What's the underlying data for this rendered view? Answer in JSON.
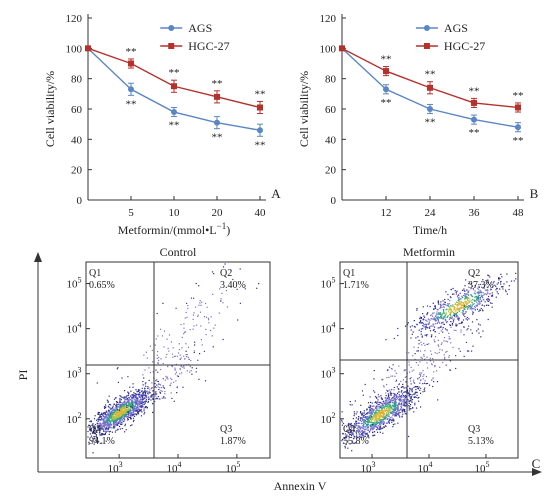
{
  "colors": {
    "ags": "#5b86c4",
    "hgc": "#b5312c",
    "axis": "#333333",
    "quad_line": "#333333"
  },
  "chart_data": [
    {
      "type": "line",
      "panel_label": "A",
      "xlabel": "Metformin/(mmol•L",
      "xlabel_sup": "−1",
      "xlabel_close": ")",
      "ylabel": "Cell viability/%",
      "categories": [
        "0",
        "5",
        "10",
        "20",
        "40"
      ],
      "x_tick_labels": [
        "5",
        "10",
        "20",
        "40"
      ],
      "y_ticks": [
        "0",
        "20",
        "40",
        "60",
        "80",
        "100",
        "120"
      ],
      "ylim": [
        0,
        120
      ],
      "legend_position": "top-right",
      "series": [
        {
          "name": "AGS",
          "color": "#5b86c4",
          "marker": "circle",
          "values": [
            100,
            73,
            58,
            51,
            46
          ],
          "errors": [
            0,
            4,
            3,
            4,
            4
          ],
          "sig": [
            "",
            "**",
            "**",
            "**",
            "**"
          ]
        },
        {
          "name": "HGC-27",
          "color": "#b5312c",
          "marker": "square",
          "values": [
            100,
            90,
            75,
            68,
            61
          ],
          "errors": [
            0,
            3,
            4,
            4,
            4
          ],
          "sig": [
            "",
            "**",
            "**",
            "**",
            "**"
          ]
        }
      ]
    },
    {
      "type": "line",
      "panel_label": "B",
      "xlabel": "Time/h",
      "ylabel": "Cell viability/%",
      "categories": [
        "0",
        "12",
        "24",
        "36",
        "48"
      ],
      "x_tick_labels": [
        "12",
        "24",
        "36",
        "48"
      ],
      "y_ticks": [
        "0",
        "20",
        "40",
        "60",
        "80",
        "100",
        "120"
      ],
      "ylim": [
        0,
        120
      ],
      "legend_position": "top-right",
      "series": [
        {
          "name": "AGS",
          "color": "#5b86c4",
          "marker": "circle",
          "values": [
            100,
            73,
            60,
            53,
            48
          ],
          "errors": [
            0,
            3,
            3,
            3,
            3
          ],
          "sig": [
            "",
            "**",
            "**",
            "**",
            "**"
          ]
        },
        {
          "name": "HGC-27",
          "color": "#b5312c",
          "marker": "square",
          "values": [
            100,
            85,
            74,
            64,
            61
          ],
          "errors": [
            0,
            3,
            4,
            3,
            3
          ],
          "sig": [
            "",
            "**",
            "**",
            "**",
            "**"
          ]
        }
      ]
    },
    {
      "type": "scatter",
      "panel_label": "C",
      "xlabel": "Annexin V",
      "ylabel": "PI",
      "panels": [
        {
          "title": "Control",
          "x_ticks": [
            "10",
            "10",
            "10"
          ],
          "x_tick_exp": [
            "3",
            "4",
            "5"
          ],
          "y_ticks": [
            "10",
            "10",
            "10",
            "10"
          ],
          "y_tick_exp": [
            "2",
            "3",
            "4",
            "5"
          ],
          "quadrants": [
            {
              "name": "Q1",
              "value": "0.65%"
            },
            {
              "name": "Q2",
              "value": "3.40%"
            },
            {
              "name": "Q3",
              "value": "1.87%"
            },
            {
              "name": "Q4",
              "value": "94.1%"
            }
          ]
        },
        {
          "title": "Metformin",
          "x_ticks": [
            "10",
            "10",
            "10"
          ],
          "x_tick_exp": [
            "3",
            "4",
            "5"
          ],
          "y_ticks": [
            "10",
            "10",
            "10",
            "10"
          ],
          "y_tick_exp": [
            "2",
            "3",
            "4",
            "5"
          ],
          "quadrants": [
            {
              "name": "Q1",
              "value": "1.71%"
            },
            {
              "name": "Q2",
              "value": "37.3%"
            },
            {
              "name": "Q3",
              "value": "5.13%"
            },
            {
              "name": "Q4",
              "value": "55.8%"
            }
          ]
        }
      ]
    }
  ]
}
